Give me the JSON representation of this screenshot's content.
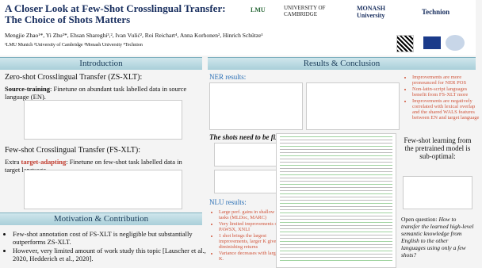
{
  "header": {
    "title": [
      "A Closer Look at  Few-Shot Crosslingual Transfer:",
      "The Choice of Shots Matters"
    ],
    "authors": "Mengjie Zhao¹*, Yi Zhu²*, Ehsan Shareghi³,², Ivan Vulić², Roi Reichart⁴, Anna Korhonen², Hinrich Schütze¹",
    "affiliations": "¹LMU Munich   ²University of Cambridge   ³Monash University   ⁴Technion",
    "logos": [
      "LMU",
      "UNIVERSITY OF CAMBRIDGE",
      "MONASH University",
      "Technion"
    ]
  },
  "intro": {
    "heading": "Introduction",
    "zs_title": "Zero-shot Crosslingual Transfer (ZS-XLT):",
    "zs_lead": "Source-training",
    "zs_text": ": Finetune on abundant task labelled data in source language (EN).",
    "fs_title": "Few-shot Crosslingual Transfer (FS-XLT):",
    "fs_pre": "Extra ",
    "fs_lead": "target-adapting",
    "fs_text": ": Finetune on few-shot task labelled data in target language."
  },
  "motivation": {
    "heading": "Motivation & Contribution",
    "bullets": [
      "Few-shot annotation cost of FS-XLT is negligible but substantially outperforms ZS-XLT.",
      "However, very limited amount of work study this topic [Lauscher et al., 2020, Hedderich et al., 2020]."
    ]
  },
  "results": {
    "heading": "Results & Conclusion",
    "ner_label": "NER results:",
    "ner_bullets": [
      "Improvements are more pronounced for NER POS",
      "Non-latin-script languages benefit from FS-XLT more",
      "Improvements are negatively correlated with lexical overlap and the shared WALS features between EN and target language"
    ],
    "shots_label": "The shots need to be fixed:",
    "nlu_label": "NLU results:",
    "nlu_bullets": [
      "Large perf. gains in shallow tasks (MLDoc, MARC)",
      "Very limited improvements on PAWSX, XNLI",
      "1 shot brings the largest improvements, larger K gives diminishing returns",
      "Variance decreases with larger K."
    ],
    "fewshot": "Few-shot learning from the pretrained model is sub-optimal:",
    "open_lead": "Open question:",
    "open_text": " How to transfer the learned high-level semantic knowledge from English to the other languages using only a few shots?"
  }
}
